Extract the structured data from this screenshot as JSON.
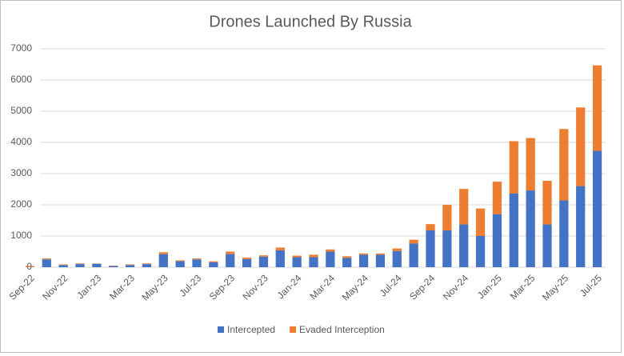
{
  "chart_data": {
    "type": "stacked-bar",
    "title": "Drones Launched By Russia",
    "categories": [
      "Sep-22",
      null,
      "Nov-22",
      null,
      "Jan-23",
      null,
      "Mar-23",
      null,
      "May-23",
      null,
      "Jul-23",
      null,
      "Sep-23",
      null,
      "Nov-23",
      null,
      "Jan-24",
      null,
      "Mar-24",
      null,
      "May-24",
      null,
      "Jul-24",
      null,
      "Sep-24",
      null,
      "Nov-24",
      null,
      "Jan-25",
      null,
      "Mar-25",
      null,
      "May-25",
      null,
      "Jul-25"
    ],
    "series": [
      {
        "name": "Intercepted",
        "color": "#4472c4",
        "values": [
          10,
          250,
          70,
          100,
          110,
          40,
          70,
          100,
          420,
          190,
          250,
          160,
          420,
          260,
          340,
          540,
          320,
          320,
          500,
          300,
          400,
          400,
          520,
          760,
          1180,
          1180,
          1370,
          1000,
          1700,
          2360,
          2460,
          1370,
          2140,
          2600,
          3730
        ]
      },
      {
        "name": "Evaded Interception",
        "color": "#ed7d31",
        "values": [
          30,
          30,
          20,
          20,
          10,
          10,
          20,
          20,
          60,
          30,
          30,
          30,
          80,
          50,
          40,
          90,
          50,
          80,
          70,
          50,
          40,
          40,
          80,
          120,
          200,
          820,
          1140,
          880,
          1040,
          1680,
          1680,
          1400,
          2290,
          2520,
          2740
        ]
      }
    ],
    "ylim": [
      0,
      7000
    ],
    "yticks": [
      0,
      1000,
      2000,
      3000,
      4000,
      5000,
      6000,
      7000
    ],
    "grid": true,
    "legend": "bottom"
  }
}
